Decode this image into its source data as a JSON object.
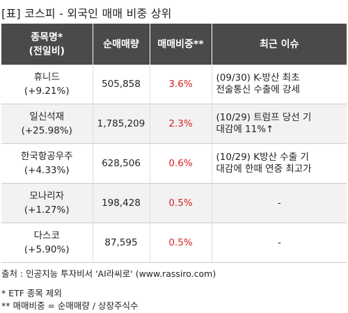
{
  "title": "[표] 코스피 - 외국인 매매 비중 상위",
  "headers": {
    "name_line1": "종목명*",
    "name_line2": "(전일비)",
    "net_volume": "순매매량",
    "trade_ratio": "매매비중**",
    "issue": "최근 이슈"
  },
  "rows": [
    {
      "name": "휴니드",
      "change": "(+9.21%)",
      "net_volume": "505,858",
      "ratio": "3.6%",
      "issue_line1": "(09/30) K-방산 최초",
      "issue_line2": "전술통신 수출에 강세"
    },
    {
      "name": "일신석재",
      "change": "(+25.98%)",
      "net_volume": "1,785,209",
      "ratio": "2.3%",
      "issue_line1": "(10/29) 트럼프 당선 기",
      "issue_line2": "대감에 11%↑"
    },
    {
      "name": "한국항공우주",
      "change": "(+4.33%)",
      "net_volume": "628,506",
      "ratio": "0.6%",
      "issue_line1": "(10/29) K방산 수출 기",
      "issue_line2": "대감에 한때 연중 최고가"
    },
    {
      "name": "모나리자",
      "change": "(+1.27%)",
      "net_volume": "198,428",
      "ratio": "0.5%",
      "issue_line1": "-",
      "issue_line2": ""
    },
    {
      "name": "다스코",
      "change": "(+5.90%)",
      "net_volume": "87,595",
      "ratio": "0.5%",
      "issue_line1": "-",
      "issue_line2": ""
    }
  ],
  "footer": {
    "source": "출처 : 인공지능 투자비서 'AI라씨로' (www.rassiro.com)",
    "note1": "* ETF 종목 제외",
    "note2": "** 매매비중 = 순매매량 / 상장주식수"
  },
  "colors": {
    "header_bg": "#4a4a4a",
    "ratio_text": "#d92020",
    "stripe": "#f2f2f2"
  }
}
